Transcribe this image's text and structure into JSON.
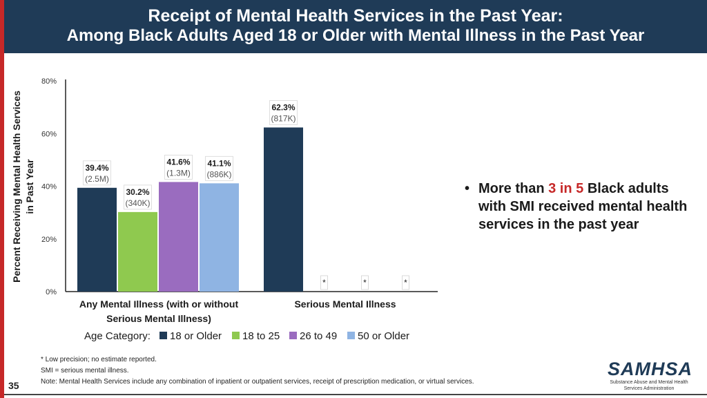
{
  "header": {
    "title_line1": "Receipt of Mental Health Services in the Past Year:",
    "title_line2": "Among Black Adults Aged 18 or Older with Mental Illness in the Past Year"
  },
  "chart_data": {
    "type": "bar",
    "ylabel_line1": "Percent Receiving Mental Health Services",
    "ylabel_line2": "in Past Year",
    "ylim": [
      0,
      80
    ],
    "yticks": [
      "0%",
      "20%",
      "40%",
      "60%",
      "80%"
    ],
    "ytick_values": [
      0,
      20,
      40,
      60,
      80
    ],
    "groups": [
      {
        "label_line1": "Any Mental Illness (with or without",
        "label_line2": "Serious Mental Illness)"
      },
      {
        "label_line1": "Serious Mental Illness",
        "label_line2": ""
      }
    ],
    "legend_title": "Age Category:",
    "series": [
      {
        "name": "18 or Older",
        "color": "#1f3b57",
        "values": [
          39.4,
          62.3
        ],
        "labels": [
          "39.4%",
          "62.3%"
        ],
        "counts": [
          "(2.5M)",
          "(817K)"
        ]
      },
      {
        "name": "18 to 25",
        "color": "#8fc94f",
        "values": [
          30.2,
          null
        ],
        "labels": [
          "30.2%",
          "*"
        ],
        "counts": [
          "(340K)",
          ""
        ]
      },
      {
        "name": "26 to 49",
        "color": "#9a6cbf",
        "values": [
          41.6,
          null
        ],
        "labels": [
          "41.6%",
          "*"
        ],
        "counts": [
          "(1.3M)",
          ""
        ]
      },
      {
        "name": "50 or Older",
        "color": "#8fb4e3",
        "values": [
          41.1,
          null
        ],
        "labels": [
          "41.1%",
          "*"
        ],
        "counts": [
          "(886K)",
          ""
        ]
      }
    ]
  },
  "bullet": {
    "pre": "More than ",
    "highlight": "3 in 5",
    "post": " Black adults with SMI received mental health services in the past year"
  },
  "notes": {
    "line1": "* Low precision; no estimate reported.",
    "line2": "SMI = serious mental illness.",
    "line3": "Note: Mental Health Services include any combination of inpatient or outpatient services, receipt of prescription medication, or virtual services."
  },
  "page_number": "35",
  "logo": {
    "name": "SAMHSA",
    "sub_line1": "Substance Abuse and Mental Health",
    "sub_line2": "Services Administration"
  }
}
